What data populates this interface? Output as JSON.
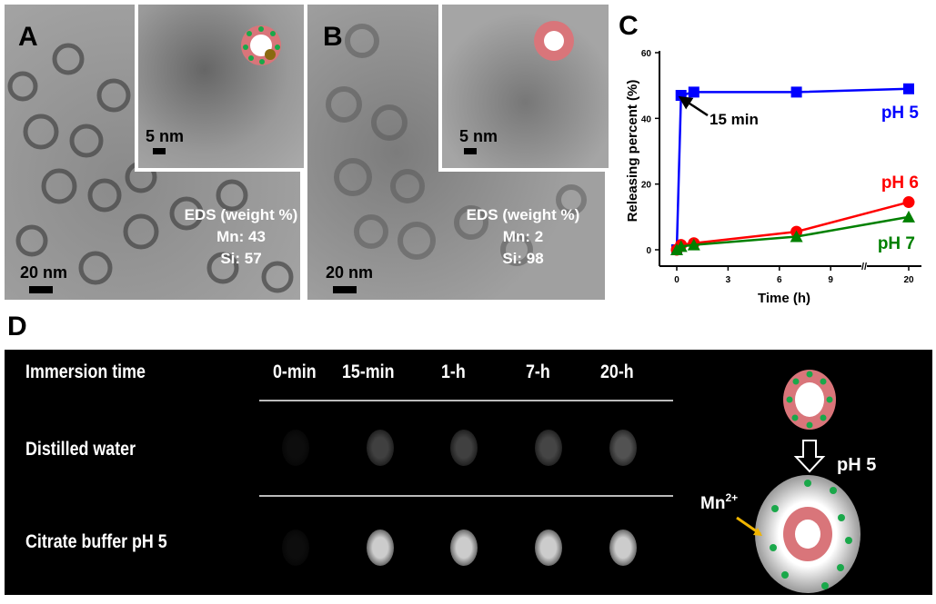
{
  "panels": {
    "A": {
      "label": "A",
      "scale_bar_main": "20 nm",
      "scale_bar_inset": "5 nm",
      "eds_title": "EDS (weight %)",
      "eds_line1": "Mn: 43",
      "eds_line2": "Si: 57"
    },
    "B": {
      "label": "B",
      "scale_bar_main": "20 nm",
      "scale_bar_inset": "5 nm",
      "eds_title": "EDS (weight %)",
      "eds_line1": "Mn: 2",
      "eds_line2": "Si: 98"
    },
    "C": {
      "label": "C",
      "annotation": "15 min"
    },
    "D": {
      "label": "D",
      "header": "Immersion time",
      "times": [
        "0-min",
        "15-min",
        "1-h",
        "7-h",
        "20-h"
      ],
      "rows": [
        {
          "label": "Distilled water",
          "intensity": [
            0.05,
            0.25,
            0.25,
            0.27,
            0.32
          ]
        },
        {
          "label": "Citrate buffer pH 5",
          "intensity": [
            0.05,
            0.8,
            0.8,
            0.8,
            0.8
          ]
        }
      ],
      "schematic_ph": "pH 5",
      "ion_label": "Mn",
      "ion_charge": "2+"
    }
  },
  "colors": {
    "pH5": "#0000ff",
    "pH6": "#ff0000",
    "pH7": "#008000",
    "shell": "#d9757a",
    "mn_dot": "#1aa84a",
    "arrow": "#f0b400"
  },
  "chart_data": {
    "type": "line",
    "xlabel": "Time (h)",
    "ylabel": "Releasing percent (%)",
    "ylim": [
      0,
      60
    ],
    "yticks": [
      "0",
      "20",
      "40",
      "60"
    ],
    "xticks": [
      "0",
      "3",
      "6",
      "9",
      "20"
    ],
    "x_axis_break": true,
    "series": [
      {
        "name": "pH 5",
        "marker": "square",
        "x": [
          0,
          0.25,
          1,
          7,
          20
        ],
        "y": [
          0,
          47,
          48,
          48,
          49
        ]
      },
      {
        "name": "pH 6",
        "marker": "circle",
        "x": [
          0,
          0.25,
          1,
          7,
          20
        ],
        "y": [
          0,
          1.5,
          2,
          5.5,
          14.5
        ]
      },
      {
        "name": "pH 7",
        "marker": "triangle",
        "x": [
          0,
          0.25,
          1,
          7,
          20
        ],
        "y": [
          0,
          1,
          1.5,
          4,
          10
        ]
      }
    ]
  }
}
